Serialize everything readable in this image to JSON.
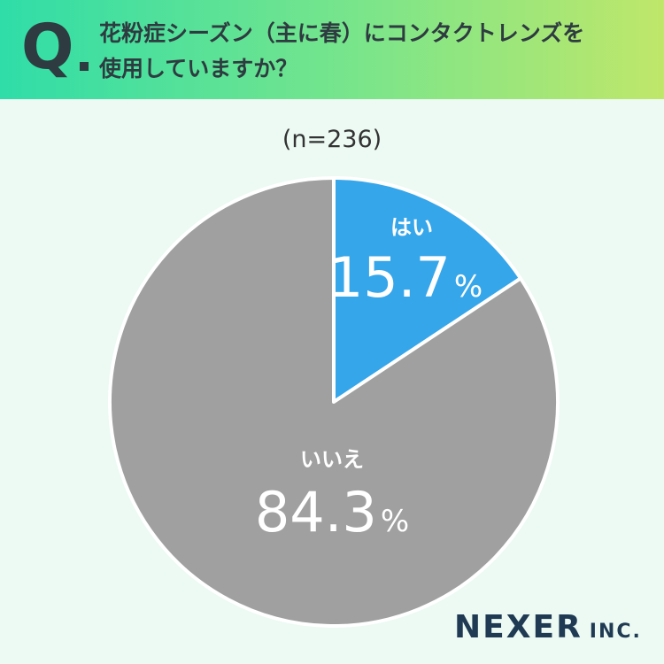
{
  "header": {
    "q_label": "Q",
    "question": "花粉症シーズン（主に春）にコンタクトレンズを\n使用していますか？"
  },
  "sample_size": "(n=236)",
  "chart_data": {
    "type": "pie",
    "slices": [
      {
        "label": "はい",
        "value": 15.7,
        "value_text": "15.7",
        "color": "#36a6ea"
      },
      {
        "label": "いいえ",
        "value": 84.3,
        "value_text": "84.3",
        "color": "#a0a0a0"
      }
    ],
    "unit": "%",
    "start": "12 o'clock, clockwise"
  },
  "footer": {
    "logo_main": "NEXER",
    "logo_sub": "INC."
  },
  "colors": {
    "header_start": "#2fdda8",
    "header_end": "#bfe76a",
    "background": "#ecfaf3"
  }
}
